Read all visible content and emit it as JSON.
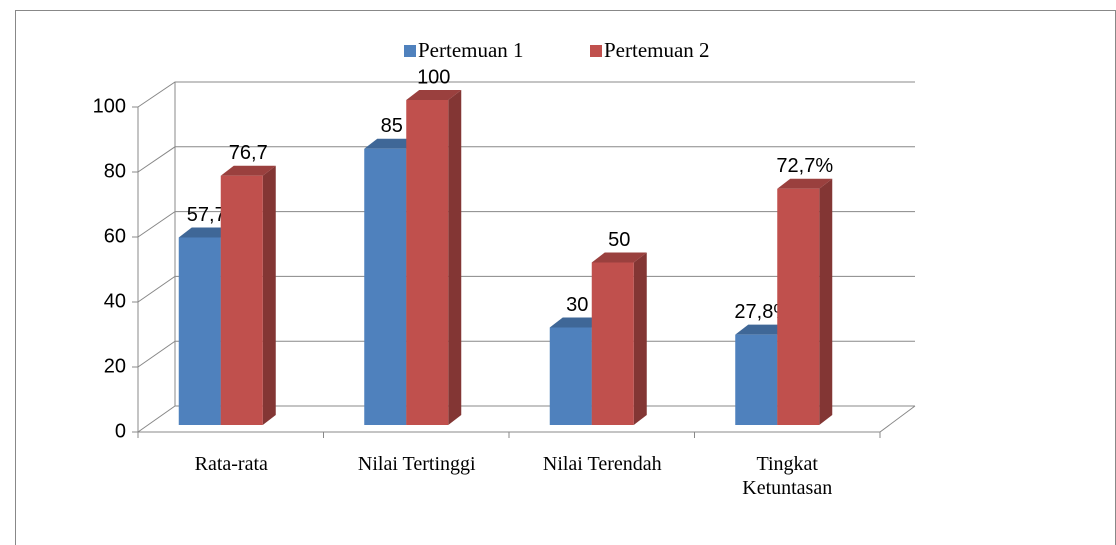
{
  "chart_data": {
    "type": "bar3d",
    "categories": [
      "Rata-rata",
      "Nilai Tertinggi",
      "Nilai Terendah",
      "Tingkat Ketuntasan"
    ],
    "series": [
      {
        "name": "Pertemuan 1",
        "color": "#4f81bd",
        "values": [
          57.7,
          85,
          30,
          27.8
        ],
        "value_labels": [
          "57,7",
          "85",
          "30",
          "27,8%"
        ]
      },
      {
        "name": "Pertemuan 2",
        "color": "#c0504d",
        "values": [
          76.7,
          100,
          50,
          72.7
        ],
        "value_labels": [
          "76,7",
          "100",
          "50",
          "72,7%"
        ]
      }
    ],
    "ylim": [
      0,
      100
    ],
    "yticks": [
      0,
      20,
      40,
      60,
      80,
      100
    ],
    "grid": true,
    "legend": "top"
  }
}
